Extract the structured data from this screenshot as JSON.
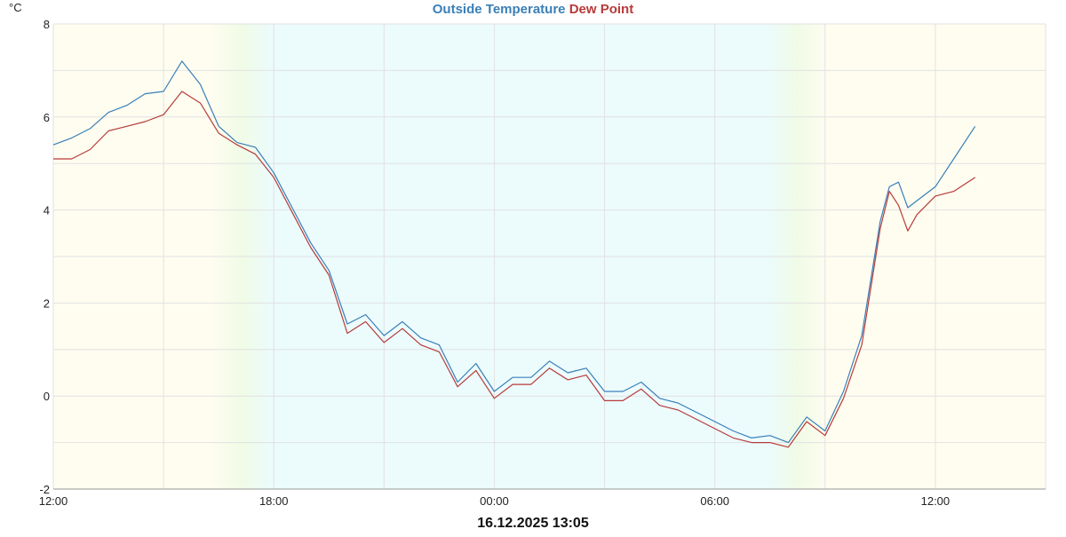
{
  "chart_data": {
    "type": "line",
    "title_parts": [
      {
        "text": "Outside Temperature",
        "color": "#3a7fb8"
      },
      {
        "text": "Dew Point",
        "color": "#b83a3a"
      }
    ],
    "ylabel": "°C",
    "footer": "16.12.2025 13:05",
    "ylim": [
      -2,
      8
    ],
    "yticks": [
      -2,
      0,
      2,
      4,
      6,
      8
    ],
    "xlim_hours": [
      0,
      27
    ],
    "xticks": [
      {
        "h": 0,
        "label": "12:00"
      },
      {
        "h": 6,
        "label": "18:00"
      },
      {
        "h": 12,
        "label": "00:00"
      },
      {
        "h": 18,
        "label": "06:00"
      },
      {
        "h": 24,
        "label": "12:00"
      }
    ],
    "grid": true,
    "background": {
      "day": "#fefdf0",
      "night": "#ecfbfc",
      "transition": "#f0fbe6"
    },
    "x": [
      "12:00",
      "12:30",
      "13:00",
      "13:30",
      "14:00",
      "14:30",
      "15:00",
      "15:30",
      "16:00",
      "16:30",
      "17:00",
      "17:30",
      "18:00",
      "18:30",
      "19:00",
      "19:30",
      "20:00",
      "20:30",
      "21:00",
      "21:30",
      "22:00",
      "22:30",
      "23:00",
      "23:30",
      "00:00",
      "00:30",
      "01:00",
      "01:30",
      "02:00",
      "02:30",
      "03:00",
      "03:30",
      "04:00",
      "04:30",
      "05:00",
      "05:30",
      "06:00",
      "06:30",
      "07:00",
      "07:30",
      "08:00",
      "08:30",
      "09:00",
      "09:30",
      "10:00",
      "10:30",
      "10:45",
      "11:00",
      "11:15",
      "11:30",
      "12:00",
      "12:30",
      "13:05"
    ],
    "series": [
      {
        "name": "Outside Temperature",
        "color": "#3a7fb8",
        "values": [
          5.4,
          5.55,
          5.75,
          6.1,
          6.25,
          6.5,
          6.55,
          7.2,
          6.7,
          5.8,
          5.45,
          5.35,
          4.8,
          4.05,
          3.3,
          2.7,
          1.55,
          1.75,
          1.3,
          1.6,
          1.25,
          1.1,
          0.3,
          0.7,
          0.1,
          0.4,
          0.4,
          0.75,
          0.5,
          0.6,
          0.1,
          0.1,
          0.3,
          -0.05,
          -0.15,
          -0.35,
          -0.55,
          -0.75,
          -0.9,
          -0.85,
          -1.0,
          -0.45,
          -0.75,
          0.1,
          1.3,
          3.75,
          4.5,
          4.6,
          4.05,
          4.2,
          4.5,
          5.1,
          5.8
        ]
      },
      {
        "name": "Dew Point",
        "color": "#b83a3a",
        "values": [
          5.1,
          5.1,
          5.3,
          5.7,
          5.8,
          5.9,
          6.05,
          6.55,
          6.3,
          5.65,
          5.4,
          5.2,
          4.7,
          3.95,
          3.2,
          2.6,
          1.35,
          1.6,
          1.15,
          1.45,
          1.1,
          0.95,
          0.2,
          0.55,
          -0.05,
          0.25,
          0.25,
          0.6,
          0.35,
          0.45,
          -0.1,
          -0.1,
          0.15,
          -0.2,
          -0.3,
          -0.5,
          -0.7,
          -0.9,
          -1.0,
          -1.0,
          -1.1,
          -0.55,
          -0.85,
          -0.05,
          1.1,
          3.6,
          4.4,
          4.1,
          3.55,
          3.9,
          4.3,
          4.4,
          4.7
        ]
      }
    ]
  }
}
